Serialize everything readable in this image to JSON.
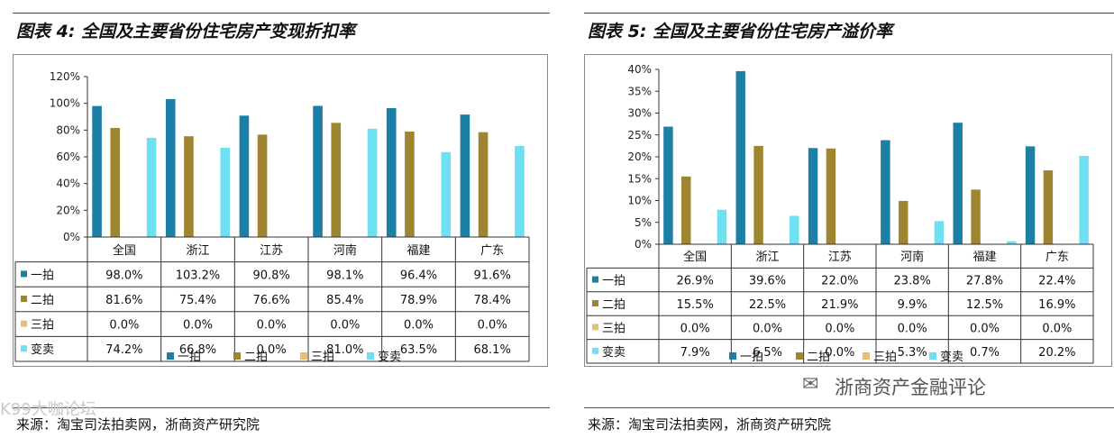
{
  "left": {
    "title": "图表 4: 全国及主要省份住宅房产变现折扣率",
    "source": "来源：淘宝司法拍卖网，浙商资产研究院",
    "watermark": "K99大咖论坛"
  },
  "right": {
    "title": "图表 5: 全国及主要省份住宅房产溢价率",
    "source": "来源：淘宝司法拍卖网，浙商资产研究院",
    "brand": "浙商资产金融评论"
  },
  "colors": {
    "一拍": "#1C7FA6",
    "二拍": "#A08530",
    "三拍": "#E3C074",
    "变卖": "#6EE0F2"
  },
  "chart_data": [
    {
      "type": "bar",
      "categories": [
        "全国",
        "浙江",
        "江苏",
        "河南",
        "福建",
        "广东"
      ],
      "series": [
        {
          "name": "一拍",
          "values": [
            98.0,
            103.2,
            90.8,
            98.1,
            96.4,
            91.6
          ],
          "labels": [
            "98.0%",
            "103.2%",
            "90.8%",
            "98.1%",
            "96.4%",
            "91.6%"
          ]
        },
        {
          "name": "二拍",
          "values": [
            81.6,
            75.4,
            76.6,
            85.4,
            78.9,
            78.4
          ],
          "labels": [
            "81.6%",
            "75.4%",
            "76.6%",
            "85.4%",
            "78.9%",
            "78.4%"
          ]
        },
        {
          "name": "三拍",
          "values": [
            0,
            0,
            0,
            0,
            0,
            0
          ],
          "labels": [
            "0.0%",
            "0.0%",
            "0.0%",
            "0.0%",
            "0.0%",
            "0.0%"
          ]
        },
        {
          "name": "变卖",
          "values": [
            74.2,
            66.8,
            0,
            81.0,
            63.5,
            68.1
          ],
          "labels": [
            "74.2%",
            "66.8%",
            "0.0%",
            "81.0%",
            "63.5%",
            "68.1%"
          ]
        }
      ],
      "yticks": [
        "0%",
        "20%",
        "40%",
        "60%",
        "80%",
        "100%",
        "120%"
      ],
      "ylim": [
        0,
        120
      ],
      "legend": [
        "一拍",
        "二拍",
        "三拍",
        "变卖"
      ],
      "legend_position": "bottom",
      "data_table": true
    },
    {
      "type": "bar",
      "categories": [
        "全国",
        "浙江",
        "江苏",
        "河南",
        "福建",
        "广东"
      ],
      "series": [
        {
          "name": "一拍",
          "values": [
            26.9,
            39.6,
            22.0,
            23.8,
            27.8,
            22.4
          ],
          "labels": [
            "26.9%",
            "39.6%",
            "22.0%",
            "23.8%",
            "27.8%",
            "22.4%"
          ]
        },
        {
          "name": "二拍",
          "values": [
            15.5,
            22.5,
            21.9,
            9.9,
            12.5,
            16.9
          ],
          "labels": [
            "15.5%",
            "22.5%",
            "21.9%",
            "9.9%",
            "12.5%",
            "16.9%"
          ]
        },
        {
          "name": "三拍",
          "values": [
            0,
            0,
            0,
            0,
            0,
            0
          ],
          "labels": [
            "0.0%",
            "0.0%",
            "0.0%",
            "0.0%",
            "0.0%",
            "0.0%"
          ]
        },
        {
          "name": "变卖",
          "values": [
            7.9,
            6.5,
            0,
            5.3,
            0.7,
            20.2
          ],
          "labels": [
            "7.9%",
            "6.5%",
            "0.0%",
            "5.3%",
            "0.7%",
            "20.2%"
          ]
        }
      ],
      "yticks": [
        "0%",
        "5%",
        "10%",
        "15%",
        "20%",
        "25%",
        "30%",
        "35%",
        "40%"
      ],
      "ylim": [
        0,
        40
      ],
      "legend": [
        "一拍",
        "二拍",
        "三拍",
        "变卖"
      ],
      "legend_position": "bottom",
      "data_table": true
    }
  ]
}
